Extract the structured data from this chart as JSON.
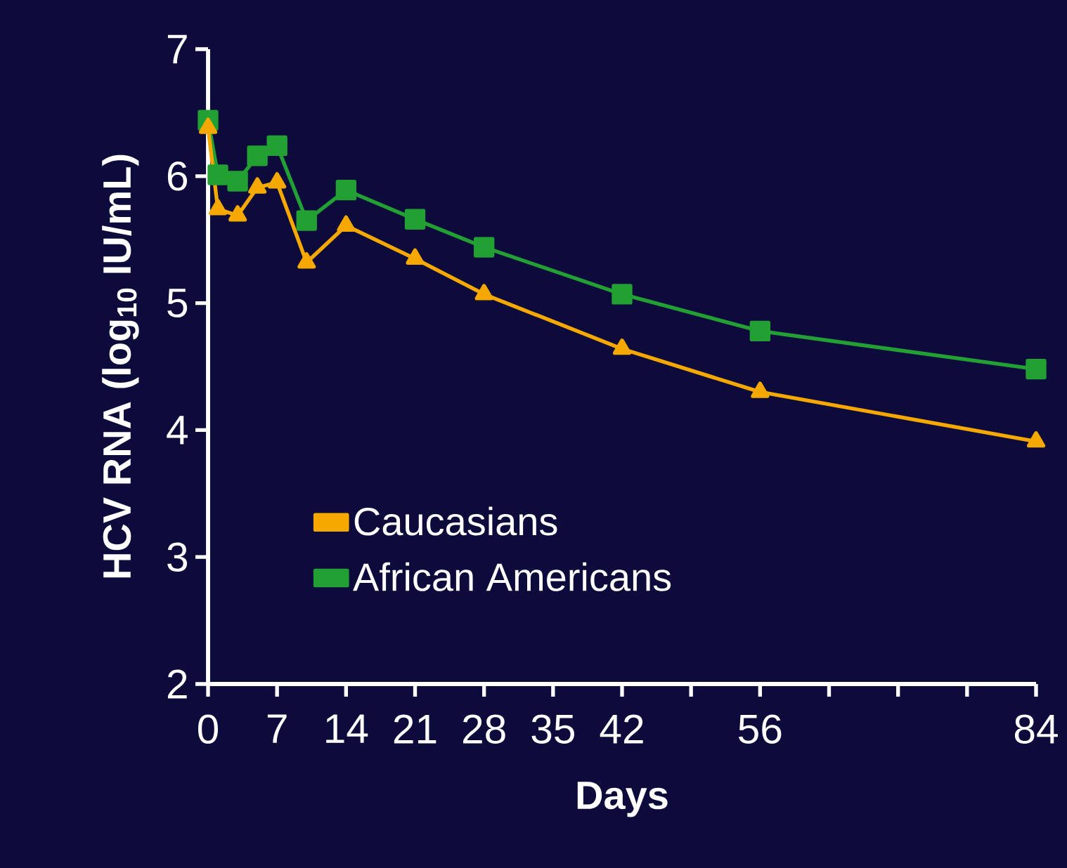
{
  "chart_data": {
    "type": "line",
    "xlabel": "Days",
    "ylabel": "HCV RNA (log$_{10}$ IU/mL)",
    "xlim": [
      0,
      84
    ],
    "ylim": [
      2,
      7
    ],
    "xticks": [
      0,
      7,
      14,
      21,
      28,
      35,
      42,
      {
        "value": 49,
        "label": null
      },
      56,
      {
        "value": 63,
        "label": null
      },
      {
        "value": 70,
        "label": null
      },
      {
        "value": 77,
        "label": null
      },
      84
    ],
    "yticks": [
      2,
      3,
      4,
      5,
      6,
      7
    ],
    "grid": false,
    "legend": "bottom left",
    "line_style": "solid",
    "series": [
      {
        "name": "Caucasians",
        "color": "#f5a800",
        "marker": "triangle",
        "x": [
          0,
          1,
          3,
          5,
          7,
          10,
          14,
          21,
          28,
          42,
          56,
          84
        ],
        "values": [
          6.38,
          5.74,
          5.69,
          5.91,
          5.95,
          5.32,
          5.61,
          5.35,
          5.07,
          4.64,
          4.3,
          3.91
        ]
      },
      {
        "name": "African Americans",
        "color": "#22a033",
        "marker": "square",
        "x": [
          0,
          1,
          3,
          5,
          7,
          10,
          14,
          21,
          28,
          42,
          56,
          84
        ],
        "values": [
          6.44,
          6.01,
          5.96,
          6.16,
          6.24,
          5.65,
          5.89,
          5.66,
          5.44,
          5.07,
          4.78,
          4.48
        ]
      }
    ]
  }
}
